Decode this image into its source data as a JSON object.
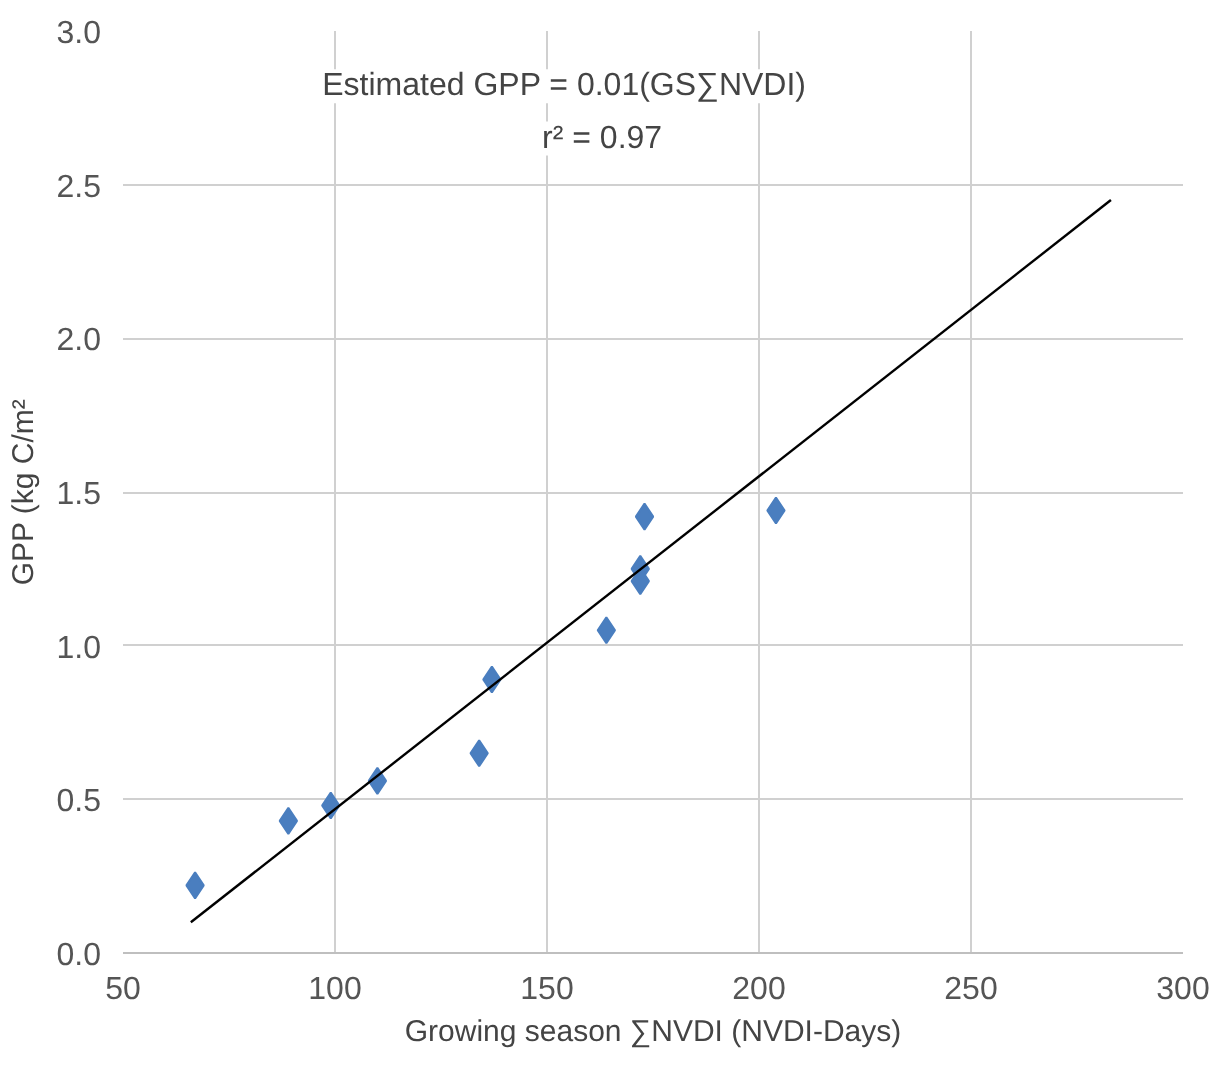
{
  "chart_data": {
    "type": "scatter",
    "xlabel": "Growing season ∑NVDI (NVDI-Days)",
    "ylabel": "GPP (kg C/m²",
    "annotations": [
      "Estimated GPP = 0.01(GS∑NVDI)",
      "r² = 0.97"
    ],
    "series": [
      {
        "color": "#4a7ebf",
        "marker": "diamond",
        "x": [
          67,
          89,
          99,
          110,
          134,
          137,
          164,
          172,
          172,
          173,
          204
        ],
        "values": [
          0.22,
          0.43,
          0.48,
          0.56,
          0.65,
          0.89,
          1.05,
          1.25,
          1.21,
          1.42,
          1.44
        ]
      },
      {
        "type": "line",
        "color": "#000000",
        "line_style": "solid",
        "marker": "none",
        "x": [
          66,
          283
        ],
        "values": [
          0.1,
          2.45
        ]
      }
    ],
    "xlim": [
      50,
      300
    ],
    "xticks": [
      50,
      100,
      150,
      200,
      250,
      300
    ],
    "ylim": [
      0,
      3
    ],
    "yticks": [
      {
        "value": 0,
        "label": "0.0"
      },
      {
        "value": 0.5,
        "label": "0.5"
      },
      {
        "value": 1,
        "label": "1.0"
      },
      {
        "value": 1.5,
        "label": "1.5"
      },
      {
        "value": 2,
        "label": "2.0"
      },
      {
        "value": 2.5,
        "label": "2.5"
      },
      {
        "value": 3,
        "label": "3.0"
      }
    ],
    "grid": true
  }
}
